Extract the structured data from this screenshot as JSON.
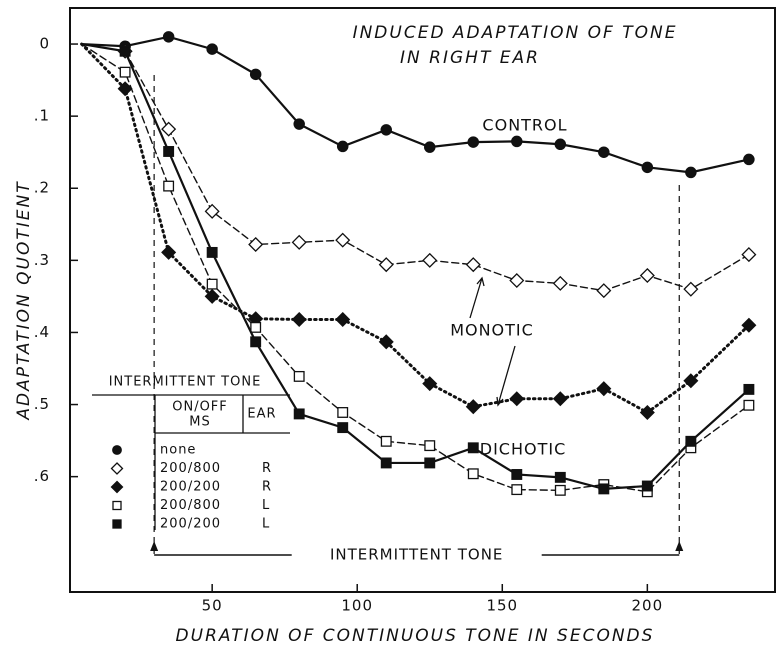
{
  "chart_data": {
    "type": "line",
    "title": [
      "INDUCED ADAPTATION OF TONE",
      "IN RIGHT EAR"
    ],
    "x_label": "DURATION OF CONTINUOUS TONE IN SECONDS",
    "y_label": "ADAPTATION QUOTIENT",
    "xlim": [
      1,
      244
    ],
    "ylim": [
      -0.05,
      0.76
    ],
    "y_inverted": true,
    "xticks": [
      50,
      100,
      150,
      200
    ],
    "yticks": [
      0,
      {
        "value": 0.1,
        "label": ".1"
      },
      {
        "value": 0.2,
        "label": ".2"
      },
      {
        "value": 0.3,
        "label": ".3"
      },
      {
        "value": 0.4,
        "label": ".4"
      },
      {
        "value": 0.5,
        "label": ".5"
      },
      {
        "value": 0.6,
        "label": ".6"
      }
    ],
    "x": [
      5,
      20,
      35,
      50,
      65,
      80,
      95,
      110,
      125,
      140,
      155,
      170,
      185,
      200,
      215,
      235
    ],
    "series": [
      {
        "name": "none",
        "color": "#111111",
        "marker": "circle",
        "filled": true,
        "dash": "solid",
        "values": [
          0,
          0.003,
          -0.01,
          0.007,
          0.042,
          0.111,
          0.142,
          0.119,
          0.143,
          0.136,
          0.135,
          0.139,
          0.15,
          0.171,
          0.178,
          0.16
        ]
      },
      {
        "name": "200/800",
        "ear": "R",
        "color": "#111111",
        "marker": "diamond",
        "filled": false,
        "dash": "dashed",
        "values": [
          0,
          0.01,
          0.118,
          0.232,
          0.278,
          0.275,
          0.272,
          0.306,
          0.3,
          0.306,
          0.328,
          0.332,
          0.342,
          0.321,
          0.34,
          0.292
        ]
      },
      {
        "name": "200/200",
        "ear": "R",
        "color": "#111111",
        "marker": "diamond",
        "filled": true,
        "dash": "dotted",
        "values": [
          0,
          0.062,
          0.289,
          0.35,
          0.381,
          0.382,
          0.382,
          0.413,
          0.471,
          0.503,
          0.492,
          0.492,
          0.478,
          0.511,
          0.467,
          0.39
        ]
      },
      {
        "name": "200/800",
        "ear": "L",
        "color": "#111111",
        "marker": "square",
        "filled": false,
        "dash": "dashed",
        "values": [
          0,
          0.039,
          0.197,
          0.333,
          0.393,
          0.461,
          0.511,
          0.551,
          0.557,
          0.596,
          0.618,
          0.619,
          0.611,
          0.621,
          0.56,
          0.501
        ]
      },
      {
        "name": "200/200",
        "ear": "L",
        "color": "#111111",
        "marker": "square",
        "filled": true,
        "dash": "solid",
        "values": [
          0,
          0.01,
          0.149,
          0.289,
          0.413,
          0.513,
          0.532,
          0.581,
          0.581,
          0.56,
          0.597,
          0.601,
          0.617,
          0.613,
          0.551,
          0.479
        ]
      }
    ],
    "curve_labels": [
      "CONTROL",
      "MONOTIC",
      "DICHOTIC"
    ],
    "legend": {
      "title": "INTERMITTENT TONE",
      "col1": [
        "ON/OFF",
        "MS"
      ],
      "col2": "EAR"
    },
    "interval": {
      "label": "INTERMITTENT TONE",
      "start": 30,
      "end": 211
    }
  }
}
